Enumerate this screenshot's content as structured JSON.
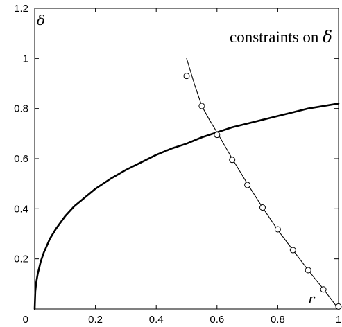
{
  "chart_data": {
    "type": "line",
    "title": "constraints on ",
    "title_symbol": "δ",
    "xlabel": "r",
    "ylabel": "δ",
    "xlim": [
      0,
      1
    ],
    "ylim": [
      0,
      1.2
    ],
    "x_ticks": [
      {
        "value": 0,
        "label": "0"
      },
      {
        "value": 0.2,
        "label": "0.2"
      },
      {
        "value": 0.4,
        "label": "0.4"
      },
      {
        "value": 0.6,
        "label": "0.6"
      },
      {
        "value": 0.8,
        "label": "0.8"
      },
      {
        "value": 1,
        "label": "1"
      }
    ],
    "y_ticks": [
      {
        "value": 0,
        "label": "0"
      },
      {
        "value": 0.2,
        "label": "0.2"
      },
      {
        "value": 0.4,
        "label": "0.4"
      },
      {
        "value": 0.6,
        "label": "0.6"
      },
      {
        "value": 0.8,
        "label": "0.8"
      },
      {
        "value": 1,
        "label": "1"
      },
      {
        "value": 1.2,
        "label": "1.2"
      }
    ],
    "grid": false,
    "legend": "none",
    "series": [
      {
        "style": "thick-solid",
        "x": [
          0,
          0.002,
          0.005,
          0.01,
          0.02,
          0.03,
          0.05,
          0.07,
          0.1,
          0.13,
          0.16,
          0.2,
          0.25,
          0.3,
          0.35,
          0.4,
          0.45,
          0.5,
          0.55,
          0.6,
          0.65,
          0.7,
          0.75,
          0.8,
          0.85,
          0.9,
          0.95,
          1.0
        ],
        "y": [
          0,
          0.07,
          0.105,
          0.14,
          0.19,
          0.225,
          0.28,
          0.32,
          0.37,
          0.41,
          0.44,
          0.48,
          0.52,
          0.555,
          0.585,
          0.615,
          0.64,
          0.66,
          0.685,
          0.705,
          0.725,
          0.74,
          0.755,
          0.77,
          0.785,
          0.8,
          0.81,
          0.82
        ]
      },
      {
        "style": "thin-solid",
        "x": [
          0.5,
          0.525,
          0.55,
          0.575,
          0.6,
          0.65,
          0.7,
          0.75,
          0.8,
          0.85,
          0.9,
          0.95,
          1.0
        ],
        "y": [
          1.0,
          0.9,
          0.81,
          0.755,
          0.705,
          0.6,
          0.5,
          0.405,
          0.315,
          0.235,
          0.155,
          0.08,
          0.0
        ]
      },
      {
        "style": "open-circles",
        "x": [
          0.5,
          0.55,
          0.6,
          0.65,
          0.7,
          0.75,
          0.8,
          0.85,
          0.9,
          0.95,
          1.0
        ],
        "y": [
          0.93,
          0.81,
          0.695,
          0.595,
          0.495,
          0.405,
          0.318,
          0.235,
          0.155,
          0.078,
          0.01
        ]
      }
    ]
  }
}
